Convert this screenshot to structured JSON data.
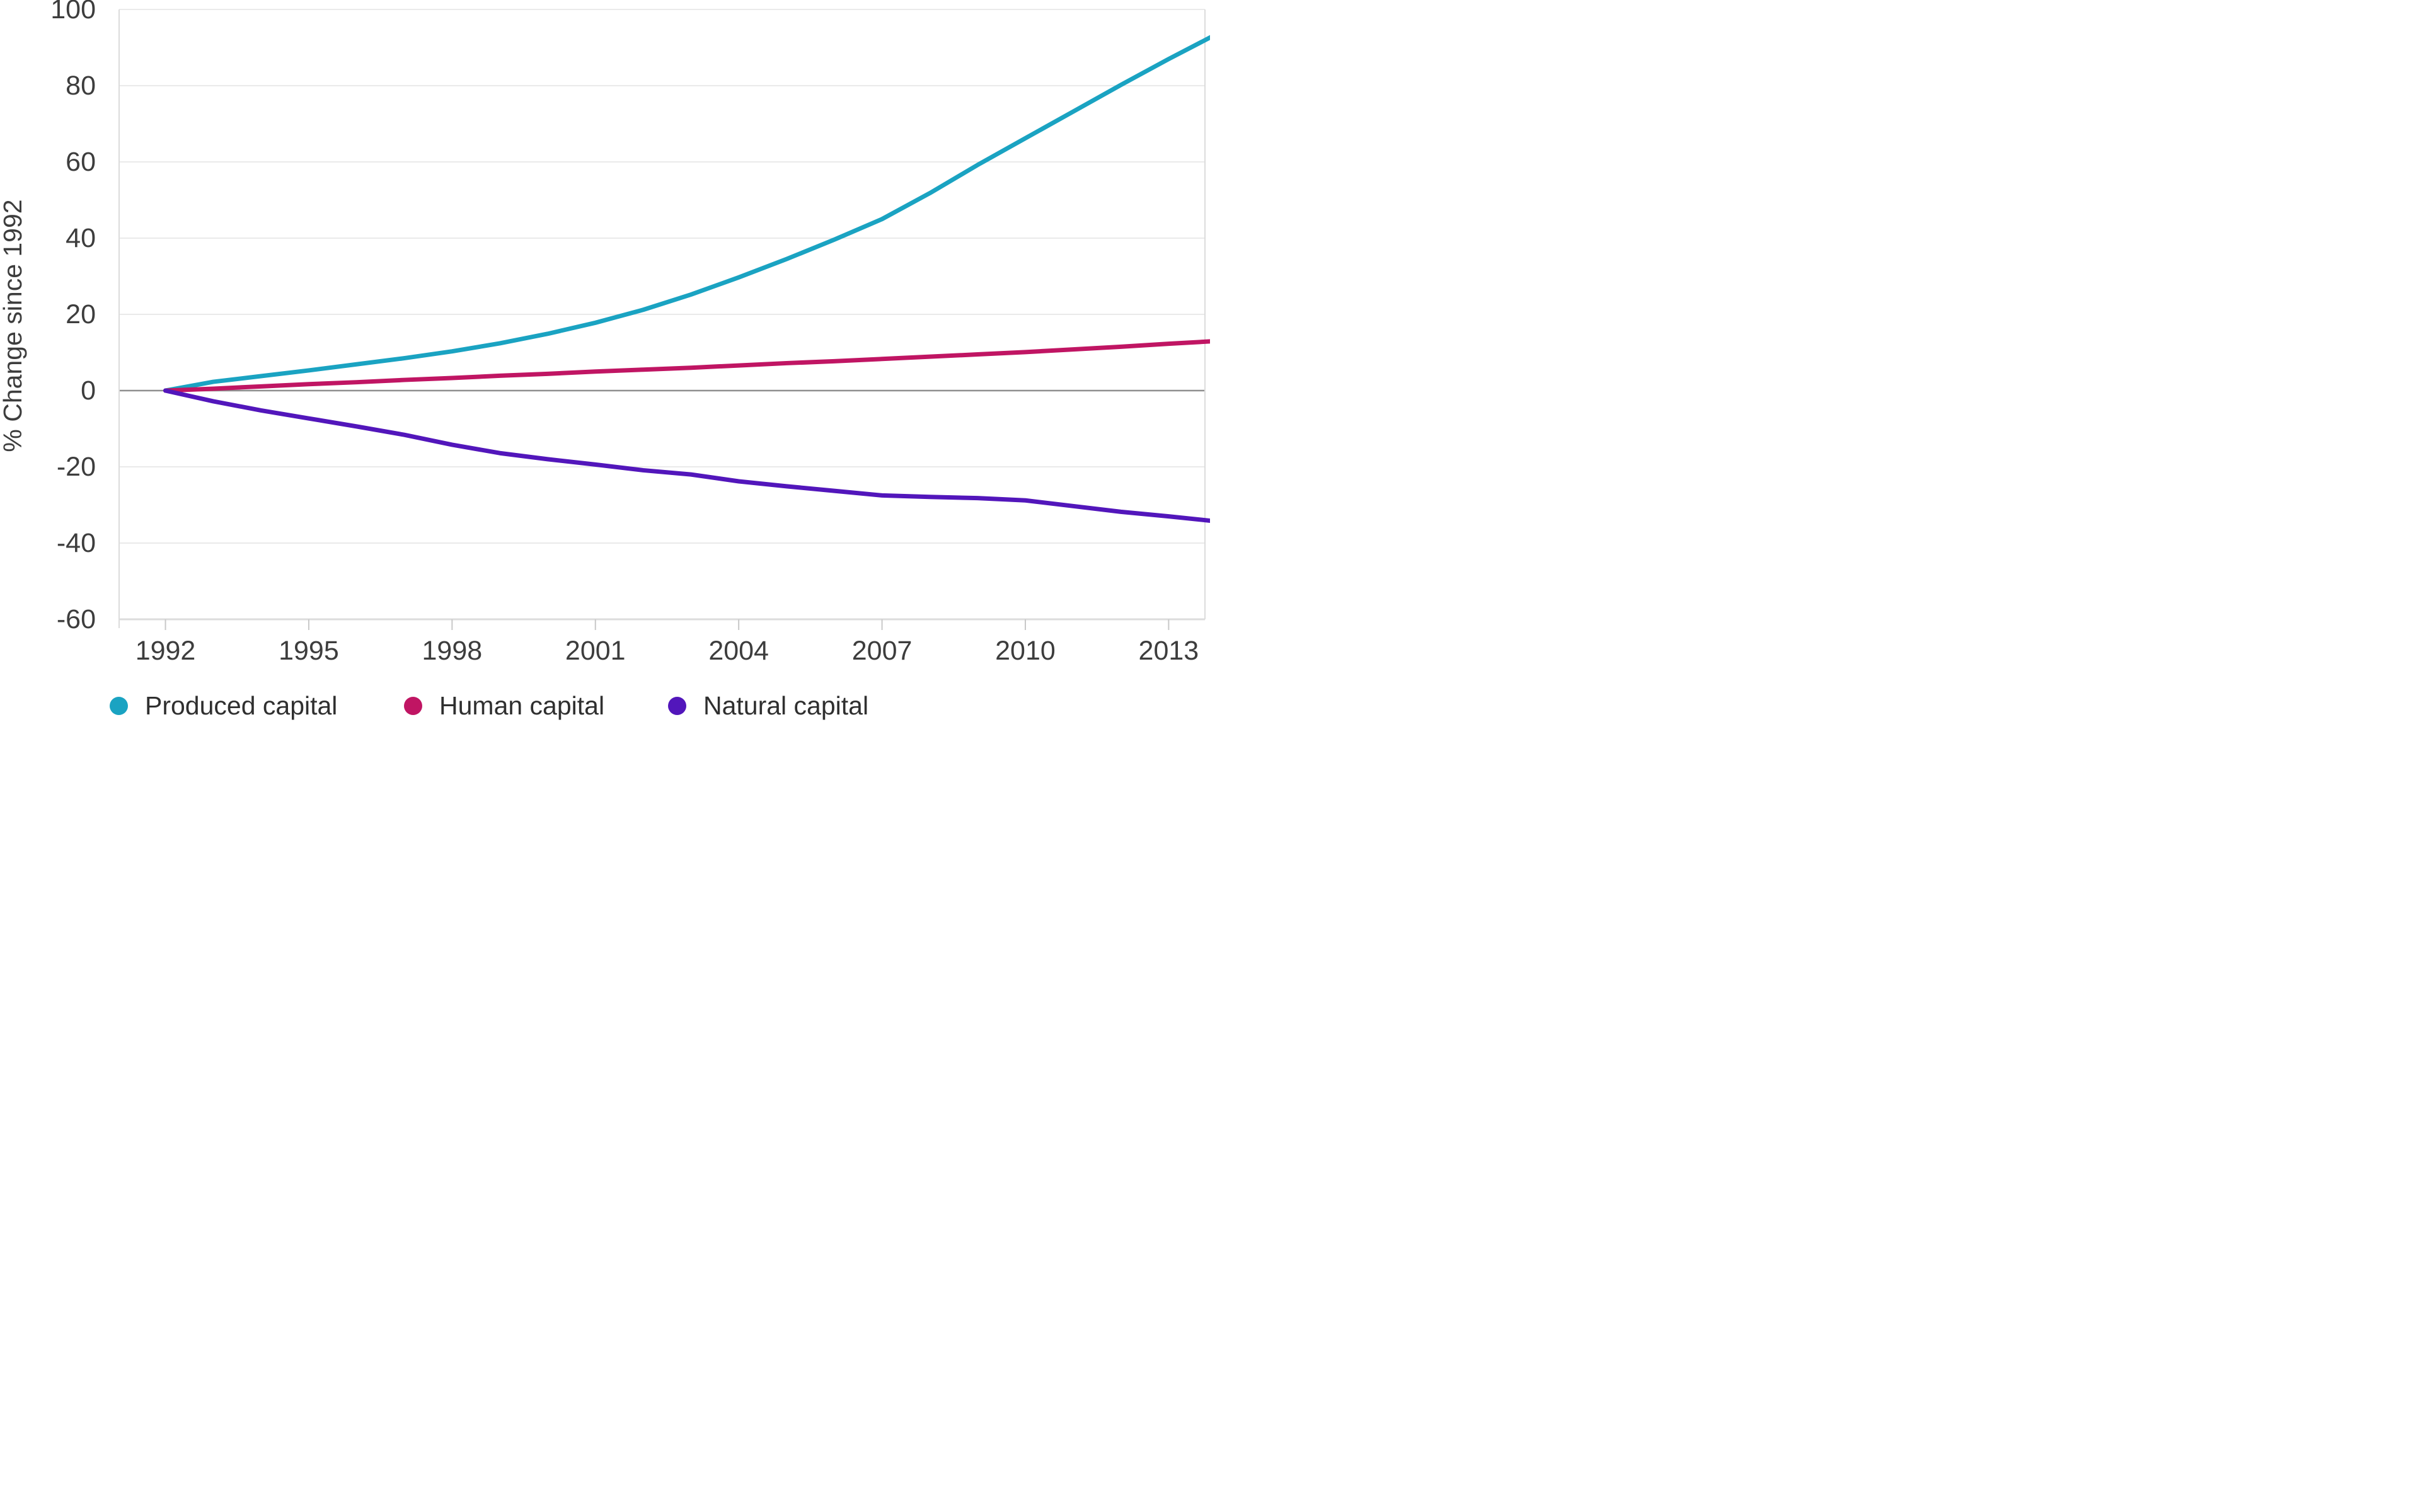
{
  "chart_data": {
    "type": "line",
    "title": "",
    "ylabel": "% Change since 1992",
    "xlabel": "",
    "x": [
      1992,
      1993,
      1994,
      1995,
      1996,
      1997,
      1998,
      1999,
      2000,
      2001,
      2002,
      2003,
      2004,
      2005,
      2006,
      2007,
      2008,
      2009,
      2010,
      2011,
      2012,
      2013,
      2014
    ],
    "series": [
      {
        "name": "Produced capital",
        "color": "#1aa3c2",
        "values": [
          0,
          2.3,
          3.8,
          5.3,
          6.9,
          8.5,
          10.3,
          12.4,
          14.9,
          17.8,
          21.2,
          25.2,
          29.7,
          34.5,
          39.6,
          45.0,
          51.8,
          59.2,
          66.2,
          73.2,
          80.2,
          87.0,
          93.5
        ]
      },
      {
        "name": "Human capital",
        "color": "#c01563",
        "values": [
          0,
          0.5,
          1.1,
          1.7,
          2.2,
          2.8,
          3.3,
          3.9,
          4.4,
          5.0,
          5.5,
          6.0,
          6.6,
          7.2,
          7.7,
          8.3,
          8.9,
          9.5,
          10.1,
          10.8,
          11.5,
          12.3,
          13.0
        ]
      },
      {
        "name": "Natural capital",
        "color": "#5216bb",
        "values": [
          0,
          -2.8,
          -5.2,
          -7.3,
          -9.4,
          -11.6,
          -14.2,
          -16.4,
          -18.0,
          -19.4,
          -20.9,
          -22.0,
          -23.8,
          -25.1,
          -26.3,
          -27.5,
          -27.9,
          -28.2,
          -28.8,
          -30.3,
          -31.8,
          -33.0,
          -34.3
        ]
      }
    ],
    "yticks": [
      100,
      80,
      60,
      40,
      20,
      0,
      -20,
      -40,
      -60
    ],
    "xticks": [
      1992,
      1995,
      1998,
      2001,
      2004,
      2007,
      2010,
      2013
    ],
    "ylim": [
      -60,
      100
    ],
    "xlim": [
      1991.03,
      2013.76
    ],
    "grid": "horizontal",
    "zero_line": true,
    "legend_position": "bottom"
  },
  "colors": {
    "grid_line": "#e3e3e3",
    "zero_line": "#8f8f8f",
    "spine": "#dcdcdc",
    "tick_mark": "#c8c8c8",
    "axis_text": "#3d3d3d",
    "legend_text": "#2f2f2f",
    "background": "#ffffff"
  }
}
